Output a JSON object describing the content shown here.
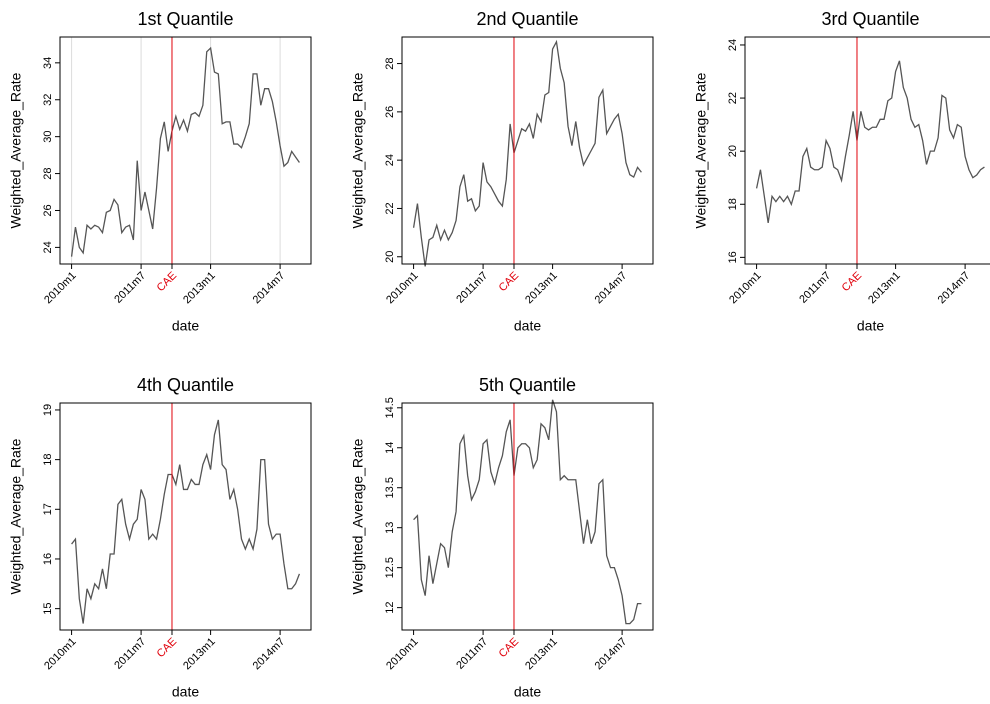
{
  "chart_data": [
    {
      "type": "line",
      "title": "1st Quantile",
      "x_label": "date",
      "y_label": "Weighted_Average_Rate",
      "color": "#555555",
      "xgrid": true,
      "x": [
        600,
        601,
        602,
        603,
        604,
        605,
        606,
        607,
        608,
        609,
        610,
        611,
        612,
        613,
        614,
        615,
        616,
        617,
        618,
        619,
        620,
        621,
        622,
        623,
        624,
        625,
        626,
        627,
        628,
        629,
        630,
        631,
        632,
        633,
        634,
        635,
        636,
        637,
        638,
        639,
        640,
        641,
        642,
        643,
        644,
        645,
        646,
        647,
        648,
        649,
        650,
        651,
        652,
        653,
        654,
        655,
        656,
        657,
        658,
        659
      ],
      "values": [
        23.5,
        25.1,
        24.0,
        23.7,
        25.2,
        25.0,
        25.2,
        25.1,
        24.8,
        25.9,
        26.0,
        26.6,
        26.3,
        24.8,
        25.1,
        25.2,
        24.4,
        28.7,
        26.0,
        27.0,
        26.0,
        25.0,
        27.2,
        29.9,
        30.8,
        29.2,
        30.3,
        31.1,
        30.4,
        30.9,
        30.3,
        31.2,
        31.3,
        31.1,
        31.7,
        34.6,
        34.8,
        33.5,
        33.4,
        30.7,
        30.8,
        30.8,
        29.6,
        29.6,
        29.4,
        30.0,
        30.7,
        33.4,
        33.4,
        31.7,
        32.6,
        32.6,
        31.9,
        30.8,
        29.5,
        28.4,
        28.6,
        29.2,
        28.9,
        28.6
      ],
      "xlim": [
        597,
        662
      ],
      "xticks": [
        {
          "value": 600,
          "label": "2010m1"
        },
        {
          "value": 618,
          "label": "2011m7"
        },
        {
          "value": 636,
          "label": "2013m1"
        },
        {
          "value": 654,
          "label": "2014m7"
        }
      ],
      "ylim": [
        23.1,
        35.4
      ],
      "yticks": [
        24,
        26,
        28,
        30,
        32,
        34
      ],
      "vline": {
        "value": 626,
        "label": "CAE",
        "color": "#e0000b"
      }
    },
    {
      "type": "line",
      "title": "2nd Quantile",
      "x_label": "date",
      "y_label": "Weighted_Average_Rate",
      "color": "#555555",
      "xgrid": false,
      "x": [
        600,
        601,
        602,
        603,
        604,
        605,
        606,
        607,
        608,
        609,
        610,
        611,
        612,
        613,
        614,
        615,
        616,
        617,
        618,
        619,
        620,
        621,
        622,
        623,
        624,
        625,
        626,
        627,
        628,
        629,
        630,
        631,
        632,
        633,
        634,
        635,
        636,
        637,
        638,
        639,
        640,
        641,
        642,
        643,
        644,
        645,
        646,
        647,
        648,
        649,
        650,
        651,
        652,
        653,
        654,
        655,
        656,
        657,
        658,
        659
      ],
      "values": [
        21.2,
        22.2,
        20.8,
        19.6,
        20.7,
        20.8,
        21.3,
        20.7,
        21.1,
        20.7,
        21.0,
        21.5,
        22.9,
        23.4,
        22.3,
        22.4,
        21.9,
        22.1,
        23.9,
        23.1,
        22.9,
        22.6,
        22.3,
        22.1,
        23.2,
        25.5,
        24.3,
        24.8,
        25.3,
        25.2,
        25.5,
        24.9,
        25.9,
        25.6,
        26.7,
        26.8,
        28.6,
        28.9,
        27.8,
        27.2,
        25.4,
        24.6,
        25.6,
        24.5,
        23.8,
        24.1,
        24.4,
        24.7,
        26.6,
        26.9,
        25.1,
        25.4,
        25.7,
        25.9,
        25.1,
        23.9,
        23.4,
        23.3,
        23.7,
        23.5
      ],
      "xlim": [
        597,
        662
      ],
      "xticks": [
        {
          "value": 600,
          "label": "2010m1"
        },
        {
          "value": 618,
          "label": "2011m7"
        },
        {
          "value": 636,
          "label": "2013m1"
        },
        {
          "value": 654,
          "label": "2014m7"
        }
      ],
      "ylim": [
        19.7,
        29.1
      ],
      "yticks": [
        20,
        22,
        24,
        26,
        28
      ],
      "vline": {
        "value": 626,
        "label": "CAE",
        "color": "#e0000b"
      }
    },
    {
      "type": "line",
      "title": "3rd Quantile",
      "x_label": "date",
      "y_label": "Weighted_Average_Rate",
      "color": "#555555",
      "xgrid": false,
      "x": [
        600,
        601,
        602,
        603,
        604,
        605,
        606,
        607,
        608,
        609,
        610,
        611,
        612,
        613,
        614,
        615,
        616,
        617,
        618,
        619,
        620,
        621,
        622,
        623,
        624,
        625,
        626,
        627,
        628,
        629,
        630,
        631,
        632,
        633,
        634,
        635,
        636,
        637,
        638,
        639,
        640,
        641,
        642,
        643,
        644,
        645,
        646,
        647,
        648,
        649,
        650,
        651,
        652,
        653,
        654,
        655,
        656,
        657,
        658,
        659
      ],
      "values": [
        18.6,
        19.3,
        18.3,
        17.3,
        18.3,
        18.1,
        18.3,
        18.1,
        18.3,
        18.0,
        18.5,
        18.5,
        19.8,
        20.1,
        19.4,
        19.3,
        19.3,
        19.4,
        20.4,
        20.1,
        19.4,
        19.3,
        18.9,
        19.8,
        20.6,
        21.5,
        20.4,
        21.5,
        20.9,
        20.8,
        20.9,
        20.9,
        21.2,
        21.2,
        21.9,
        22.0,
        23.0,
        23.4,
        22.4,
        22.0,
        21.2,
        20.9,
        21.0,
        20.4,
        19.5,
        20.0,
        20.0,
        20.5,
        22.1,
        22.0,
        20.8,
        20.5,
        21.0,
        20.9,
        19.8,
        19.3,
        19.0,
        19.1,
        19.3,
        19.4
      ],
      "xlim": [
        597,
        662
      ],
      "xticks": [
        {
          "value": 600,
          "label": "2010m1"
        },
        {
          "value": 618,
          "label": "2011m7"
        },
        {
          "value": 636,
          "label": "2013m1"
        },
        {
          "value": 654,
          "label": "2014m7"
        }
      ],
      "ylim": [
        15.75,
        24.3
      ],
      "yticks": [
        16,
        18,
        20,
        22,
        24
      ],
      "vline": {
        "value": 626,
        "label": "CAE",
        "color": "#e0000b"
      }
    },
    {
      "type": "line",
      "title": "4th Quantile",
      "x_label": "date",
      "y_label": "Weighted_Average_Rate",
      "color": "#555555",
      "xgrid": false,
      "x": [
        600,
        601,
        602,
        603,
        604,
        605,
        606,
        607,
        608,
        609,
        610,
        611,
        612,
        613,
        614,
        615,
        616,
        617,
        618,
        619,
        620,
        621,
        622,
        623,
        624,
        625,
        626,
        627,
        628,
        629,
        630,
        631,
        632,
        633,
        634,
        635,
        636,
        637,
        638,
        639,
        640,
        641,
        642,
        643,
        644,
        645,
        646,
        647,
        648,
        649,
        650,
        651,
        652,
        653,
        654,
        655,
        656,
        657,
        658,
        659
      ],
      "values": [
        16.3,
        16.4,
        15.2,
        14.7,
        15.4,
        15.2,
        15.5,
        15.4,
        15.8,
        15.4,
        16.1,
        16.1,
        17.1,
        17.2,
        16.7,
        16.4,
        16.7,
        16.8,
        17.4,
        17.2,
        16.4,
        16.5,
        16.4,
        16.8,
        17.3,
        17.7,
        17.7,
        17.5,
        17.9,
        17.4,
        17.4,
        17.6,
        17.5,
        17.5,
        17.9,
        18.1,
        17.8,
        18.5,
        18.8,
        17.9,
        17.8,
        17.2,
        17.4,
        17.0,
        16.4,
        16.2,
        16.4,
        16.2,
        16.6,
        18.0,
        18.0,
        16.7,
        16.4,
        16.5,
        16.5,
        15.9,
        15.4,
        15.4,
        15.5,
        15.7
      ],
      "xlim": [
        597,
        662
      ],
      "xticks": [
        {
          "value": 600,
          "label": "2010m1"
        },
        {
          "value": 618,
          "label": "2011m7"
        },
        {
          "value": 636,
          "label": "2013m1"
        },
        {
          "value": 654,
          "label": "2014m7"
        }
      ],
      "ylim": [
        14.57,
        19.14
      ],
      "yticks": [
        15,
        16,
        17,
        18,
        19
      ],
      "vline": {
        "value": 626,
        "label": "CAE",
        "color": "#e0000b"
      }
    },
    {
      "type": "line",
      "title": "5th Quantile",
      "x_label": "date",
      "y_label": "Weighted_Average_Rate",
      "color": "#555555",
      "xgrid": false,
      "x": [
        600,
        601,
        602,
        603,
        604,
        605,
        606,
        607,
        608,
        609,
        610,
        611,
        612,
        613,
        614,
        615,
        616,
        617,
        618,
        619,
        620,
        621,
        622,
        623,
        624,
        625,
        626,
        627,
        628,
        629,
        630,
        631,
        632,
        633,
        634,
        635,
        636,
        637,
        638,
        639,
        640,
        641,
        642,
        643,
        644,
        645,
        646,
        647,
        648,
        649,
        650,
        651,
        652,
        653,
        654,
        655,
        656,
        657,
        658,
        659
      ],
      "values": [
        13.1,
        13.15,
        12.35,
        12.15,
        12.65,
        12.3,
        12.55,
        12.8,
        12.75,
        12.5,
        12.95,
        13.2,
        14.05,
        14.15,
        13.65,
        13.35,
        13.45,
        13.6,
        14.05,
        14.1,
        13.7,
        13.55,
        13.75,
        13.9,
        14.2,
        14.35,
        13.65,
        14.0,
        14.05,
        14.05,
        14.0,
        13.75,
        13.85,
        14.3,
        14.25,
        14.1,
        14.6,
        14.45,
        13.6,
        13.65,
        13.6,
        13.6,
        13.6,
        13.2,
        12.8,
        13.1,
        12.8,
        12.95,
        13.55,
        13.6,
        12.65,
        12.5,
        12.5,
        12.35,
        12.15,
        11.8,
        11.8,
        11.85,
        12.05,
        12.05
      ],
      "xlim": [
        597,
        662
      ],
      "xticks": [
        {
          "value": 600,
          "label": "2010m1"
        },
        {
          "value": 618,
          "label": "2011m7"
        },
        {
          "value": 636,
          "label": "2013m1"
        },
        {
          "value": 654,
          "label": "2014m7"
        }
      ],
      "ylim": [
        11.72,
        14.56
      ],
      "yticks": [
        12,
        12.5,
        13,
        13.5,
        14,
        14.5
      ],
      "vline": {
        "value": 626,
        "label": "CAE",
        "color": "#e0000b"
      }
    }
  ]
}
